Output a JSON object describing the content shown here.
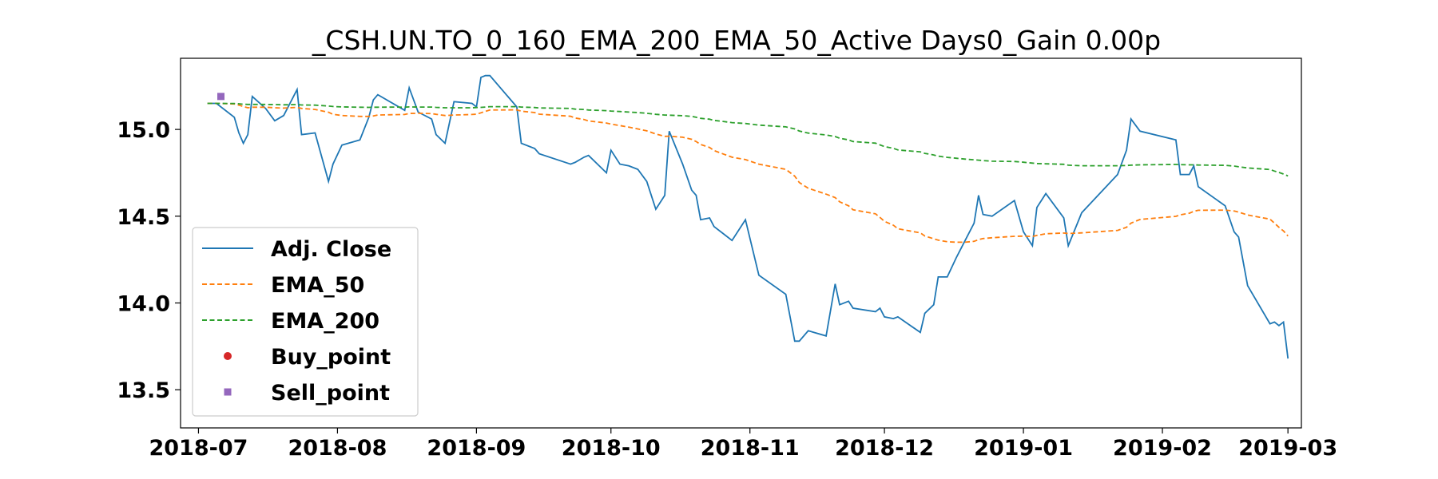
{
  "chart_data": {
    "type": "line",
    "title": "_CSH.UN.TO_0_160_EMA_200_EMA_50_Active Days0_Gain   0.00p",
    "xlabel": "",
    "ylabel": "",
    "x_ticks": [
      "2018-07",
      "2018-08",
      "2018-09",
      "2018-10",
      "2018-11",
      "2018-12",
      "2019-01",
      "2019-02",
      "2019-03"
    ],
    "y_ticks": [
      "13.5",
      "14.0",
      "14.5",
      "15.0"
    ],
    "xlim": [
      "2018-06-27",
      "2019-03-04"
    ],
    "ylim": [
      13.28,
      15.41
    ],
    "grid": false,
    "legend_position": "lower-left",
    "series": [
      {
        "name": "Adj. Close",
        "style": "solid",
        "color": "#1f77b4",
        "points": [
          [
            "2018-07-03",
            15.15
          ],
          [
            "2018-07-05",
            15.15
          ],
          [
            "2018-07-09",
            15.07
          ],
          [
            "2018-07-10",
            14.98
          ],
          [
            "2018-07-11",
            14.92
          ],
          [
            "2018-07-12",
            14.97
          ],
          [
            "2018-07-13",
            15.19
          ],
          [
            "2018-07-16",
            15.12
          ],
          [
            "2018-07-18",
            15.05
          ],
          [
            "2018-07-20",
            15.08
          ],
          [
            "2018-07-23",
            15.23
          ],
          [
            "2018-07-24",
            14.97
          ],
          [
            "2018-07-27",
            14.98
          ],
          [
            "2018-07-30",
            14.7
          ],
          [
            "2018-07-31",
            14.8
          ],
          [
            "2018-08-02",
            14.91
          ],
          [
            "2018-08-06",
            14.94
          ],
          [
            "2018-08-08",
            15.07
          ],
          [
            "2018-08-09",
            15.17
          ],
          [
            "2018-08-10",
            15.2
          ],
          [
            "2018-08-14",
            15.14
          ],
          [
            "2018-08-16",
            15.11
          ],
          [
            "2018-08-17",
            15.24
          ],
          [
            "2018-08-19",
            15.1
          ],
          [
            "2018-08-22",
            15.06
          ],
          [
            "2018-08-23",
            14.97
          ],
          [
            "2018-08-25",
            14.92
          ],
          [
            "2018-08-27",
            15.16
          ],
          [
            "2018-08-31",
            15.15
          ],
          [
            "2018-09-01",
            15.13
          ],
          [
            "2018-09-02",
            15.3
          ],
          [
            "2018-09-03",
            15.31
          ],
          [
            "2018-09-04",
            15.31
          ],
          [
            "2018-09-10",
            15.13
          ],
          [
            "2018-09-11",
            14.92
          ],
          [
            "2018-09-14",
            14.89
          ],
          [
            "2018-09-15",
            14.86
          ],
          [
            "2018-09-22",
            14.8
          ],
          [
            "2018-09-23",
            14.81
          ],
          [
            "2018-09-25",
            14.84
          ],
          [
            "2018-09-26",
            14.85
          ],
          [
            "2018-09-30",
            14.75
          ],
          [
            "2018-10-01",
            14.88
          ],
          [
            "2018-10-03",
            14.8
          ],
          [
            "2018-10-05",
            14.79
          ],
          [
            "2018-10-07",
            14.77
          ],
          [
            "2018-10-09",
            14.7
          ],
          [
            "2018-10-11",
            14.54
          ],
          [
            "2018-10-13",
            14.62
          ],
          [
            "2018-10-14",
            14.99
          ],
          [
            "2018-10-17",
            14.8
          ],
          [
            "2018-10-19",
            14.65
          ],
          [
            "2018-10-20",
            14.62
          ],
          [
            "2018-10-21",
            14.48
          ],
          [
            "2018-10-23",
            14.49
          ],
          [
            "2018-10-24",
            14.44
          ],
          [
            "2018-10-26",
            14.4
          ],
          [
            "2018-10-28",
            14.36
          ],
          [
            "2018-10-31",
            14.48
          ],
          [
            "2018-11-03",
            14.16
          ],
          [
            "2018-11-09",
            14.05
          ],
          [
            "2018-11-11",
            13.78
          ],
          [
            "2018-11-12",
            13.78
          ],
          [
            "2018-11-14",
            13.84
          ],
          [
            "2018-11-18",
            13.81
          ],
          [
            "2018-11-20",
            14.11
          ],
          [
            "2018-11-21",
            13.99
          ],
          [
            "2018-11-23",
            14.01
          ],
          [
            "2018-11-24",
            13.97
          ],
          [
            "2018-11-29",
            13.95
          ],
          [
            "2018-11-30",
            13.97
          ],
          [
            "2018-12-01",
            13.92
          ],
          [
            "2018-12-03",
            13.91
          ],
          [
            "2018-12-04",
            13.92
          ],
          [
            "2018-12-09",
            13.83
          ],
          [
            "2018-12-10",
            13.94
          ],
          [
            "2018-12-12",
            13.99
          ],
          [
            "2018-12-13",
            14.15
          ],
          [
            "2018-12-15",
            14.15
          ],
          [
            "2018-12-17",
            14.26
          ],
          [
            "2018-12-19",
            14.36
          ],
          [
            "2018-12-21",
            14.46
          ],
          [
            "2018-12-22",
            14.62
          ],
          [
            "2018-12-23",
            14.51
          ],
          [
            "2018-12-25",
            14.5
          ],
          [
            "2018-12-30",
            14.59
          ],
          [
            "2019-01-01",
            14.41
          ],
          [
            "2019-01-03",
            14.33
          ],
          [
            "2019-01-04",
            14.55
          ],
          [
            "2019-01-06",
            14.63
          ],
          [
            "2019-01-10",
            14.49
          ],
          [
            "2019-01-11",
            14.33
          ],
          [
            "2019-01-14",
            14.52
          ],
          [
            "2019-01-22",
            14.74
          ],
          [
            "2019-01-24",
            14.88
          ],
          [
            "2019-01-25",
            15.06
          ],
          [
            "2019-01-27",
            14.99
          ],
          [
            "2019-02-04",
            14.94
          ],
          [
            "2019-02-05",
            14.74
          ],
          [
            "2019-02-07",
            14.74
          ],
          [
            "2019-02-08",
            14.79
          ],
          [
            "2019-02-09",
            14.67
          ],
          [
            "2019-02-15",
            14.56
          ],
          [
            "2019-02-17",
            14.41
          ],
          [
            "2019-02-18",
            14.38
          ],
          [
            "2019-02-20",
            14.1
          ],
          [
            "2019-02-25",
            13.88
          ],
          [
            "2019-02-26",
            13.89
          ],
          [
            "2019-02-27",
            13.87
          ],
          [
            "2019-02-28",
            13.89
          ],
          [
            "2019-03-01",
            13.68
          ]
        ]
      },
      {
        "name": "EMA_50",
        "style": "dashed",
        "color": "#ff7f0e",
        "points": []
      },
      {
        "name": "EMA_200",
        "style": "dashed",
        "color": "#2ca02c",
        "points": []
      },
      {
        "name": "Buy_point",
        "style": "marker-circle",
        "color": "#d62728",
        "points": []
      },
      {
        "name": "Sell_point",
        "style": "marker-square",
        "color": "#9467bd",
        "points": [
          [
            "2018-07-06",
            15.19
          ]
        ]
      }
    ]
  }
}
